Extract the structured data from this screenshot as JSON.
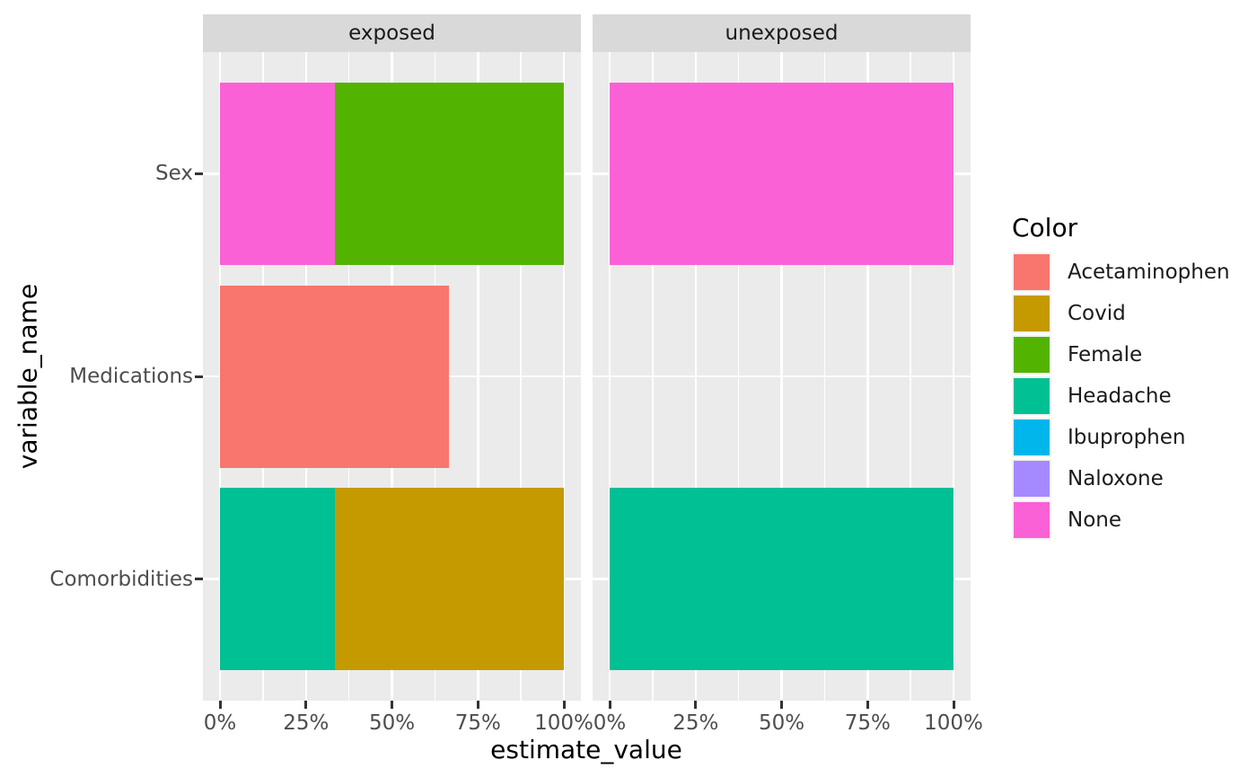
{
  "chart_data": {
    "type": "bar",
    "orientation": "horizontal",
    "stacked": true,
    "xlabel": "estimate_value",
    "ylabel": "variable_name",
    "categories": [
      "Sex",
      "Medications",
      "Comorbidities"
    ],
    "x_axis": {
      "range": [
        0,
        1
      ],
      "tick_values": [
        0,
        0.25,
        0.5,
        0.75,
        1
      ],
      "tick_labels": [
        "0%",
        "25%",
        "50%",
        "75%",
        "100%"
      ],
      "minor_tick_values": [
        0.125,
        0.375,
        0.625,
        0.875
      ],
      "grid": true
    },
    "facets": [
      {
        "label": "exposed",
        "rows": [
          {
            "category": "Sex",
            "segments": [
              {
                "name": "None",
                "value": 0.333
              },
              {
                "name": "Female",
                "value": 0.667
              }
            ]
          },
          {
            "category": "Medications",
            "segments": [
              {
                "name": "Acetaminophen",
                "value": 0.667
              }
            ]
          },
          {
            "category": "Comorbidities",
            "segments": [
              {
                "name": "Headache",
                "value": 0.333
              },
              {
                "name": "Covid",
                "value": 0.667
              }
            ]
          }
        ]
      },
      {
        "label": "unexposed",
        "rows": [
          {
            "category": "Sex",
            "segments": [
              {
                "name": "None",
                "value": 1.0
              }
            ]
          },
          {
            "category": "Medications",
            "segments": []
          },
          {
            "category": "Comorbidities",
            "segments": [
              {
                "name": "Headache",
                "value": 1.0
              }
            ]
          }
        ]
      }
    ],
    "legend": {
      "title": "Color",
      "position": "right",
      "entries": [
        {
          "label": "Acetaminophen",
          "color": "#F8766D"
        },
        {
          "label": "Covid",
          "color": "#C49A00"
        },
        {
          "label": "Female",
          "color": "#53B400"
        },
        {
          "label": "Headache",
          "color": "#00C094"
        },
        {
          "label": "Ibuprophen",
          "color": "#00B6EB"
        },
        {
          "label": "Naloxone",
          "color": "#A58AFF"
        },
        {
          "label": "None",
          "color": "#FB61D7"
        }
      ]
    },
    "theme": {
      "panel_background": "#EBEBEB",
      "strip_background": "#D9D9D9",
      "grid_color": "#FFFFFF",
      "tick_color": "#333333",
      "axis_text_color": "#4D4D4D",
      "strip_text_color": "#1A1A1A",
      "title_color": "#000000",
      "plot_background": "#FFFFFF"
    }
  }
}
